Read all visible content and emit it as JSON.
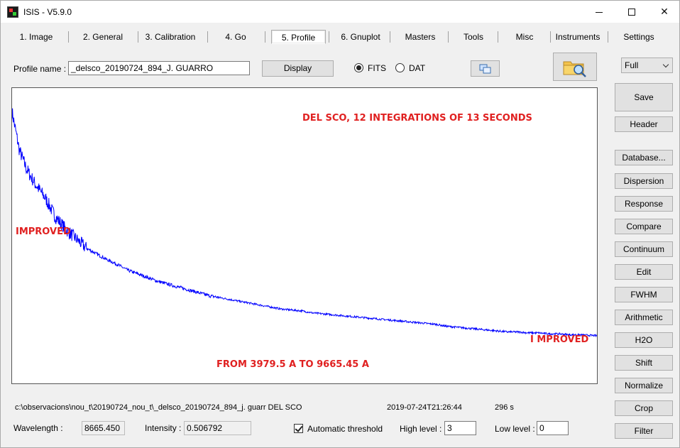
{
  "window": {
    "title": "ISIS - V5.9.0"
  },
  "tabs": [
    {
      "label": "1. Image"
    },
    {
      "label": "2. General"
    },
    {
      "label": "3. Calibration"
    },
    {
      "label": "4. Go"
    },
    {
      "label": "5. Profile"
    },
    {
      "label": "6. Gnuplot"
    },
    {
      "label": "Masters"
    },
    {
      "label": "Tools"
    },
    {
      "label": "Misc"
    },
    {
      "label": "Instruments"
    },
    {
      "label": "Settings"
    }
  ],
  "profile": {
    "name_label": "Profile name :",
    "name_value": "_delsco_20190724_894_J. GUARRO",
    "display_label": "Display",
    "fits_label": "FITS",
    "dat_label": "DAT",
    "format_selected": "FITS"
  },
  "right_panel": {
    "select_value": "Full",
    "save_label": "Save",
    "header_label": "Header",
    "buttons": [
      {
        "label": "Database..."
      },
      {
        "label": "Dispersion"
      },
      {
        "label": "Response"
      },
      {
        "label": "Compare"
      },
      {
        "label": "Continuum"
      },
      {
        "label": "Edit"
      },
      {
        "label": "FWHM"
      },
      {
        "label": "Arithmetic"
      },
      {
        "label": "H2O"
      },
      {
        "label": "Shift"
      },
      {
        "label": "Normalize"
      },
      {
        "label": "Crop"
      },
      {
        "label": "Filter"
      }
    ]
  },
  "annotations": {
    "title": "DEL SCO, 12 INTEGRATIONS OF 13 SECONDS",
    "left": "IMPROVED",
    "right": "I    MPROVED",
    "range": "FROM 3979.5 A TO  9665.45 A"
  },
  "status": {
    "path": "c:\\observacions\\nou_t\\20190724_nou_t\\_delsco_20190724_894_j. guarr DEL SCO",
    "date": "2019-07-24T21:26:44",
    "exposure": "296 s"
  },
  "bottom": {
    "wavelength_label": "Wavelength :",
    "wavelength_value": "8665.450",
    "intensity_label": "Intensity :",
    "intensity_value": "0.506792",
    "auto_threshold_label": "Automatic threshold",
    "high_level_label": "High level :",
    "high_level_value": "3",
    "low_level_label": "Low level :",
    "low_level_value": "0"
  },
  "colors": {
    "spectrum": "#0000ff",
    "annotation": "#e02020"
  },
  "chart_data": {
    "type": "line",
    "title": "",
    "xlabel": "",
    "ylabel": "",
    "xlim": [
      3979.5,
      9665.45
    ],
    "grid": false,
    "series": [
      {
        "x": [
          3979.5,
          4050,
          4120,
          4200,
          4300,
          4400,
          4500,
          4600,
          4700,
          4800,
          4900,
          5000,
          5100,
          5200,
          5300,
          5400,
          5500,
          5600,
          5700,
          5800,
          5900,
          6000,
          6100,
          6200,
          6300,
          6400,
          6500,
          6600,
          6700,
          6800,
          6900,
          7000,
          7100,
          7200,
          7300,
          7400,
          7500,
          7600,
          7700,
          7800,
          7900,
          8000,
          8100,
          8200,
          8300,
          8400,
          8500,
          8600,
          8700,
          8800,
          8900,
          9000,
          9100,
          9200,
          9300,
          9400,
          9500,
          9665.45
        ],
        "y": [
          2.85,
          2.45,
          2.25,
          2.1,
          1.95,
          1.75,
          1.62,
          1.52,
          1.42,
          1.36,
          1.3,
          1.25,
          1.19,
          1.15,
          1.11,
          1.07,
          1.04,
          1.01,
          0.98,
          0.95,
          0.92,
          0.9,
          0.88,
          0.86,
          0.84,
          0.82,
          0.8,
          0.78,
          0.77,
          0.76,
          0.74,
          0.73,
          0.72,
          0.71,
          0.7,
          0.69,
          0.68,
          0.67,
          0.66,
          0.65,
          0.64,
          0.63,
          0.62,
          0.6,
          0.59,
          0.58,
          0.57,
          0.56,
          0.55,
          0.54,
          0.54,
          0.53,
          0.53,
          0.52,
          0.52,
          0.51,
          0.51,
          0.5
        ]
      }
    ]
  }
}
